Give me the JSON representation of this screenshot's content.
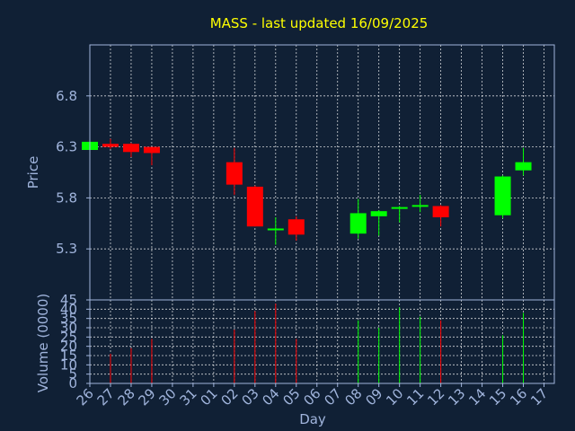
{
  "chart_data": [
    {
      "type": "candlestick",
      "title": "MASS - last updated 16/09/2025",
      "ylabel": "Price",
      "ylim": [
        4.8,
        7.3
      ],
      "yticks": [
        "5.3",
        "5.8",
        "6.3",
        "6.8"
      ],
      "grid": true,
      "colors": {
        "up": "#00ff00",
        "down": "#ff0000",
        "title": "#ffff00",
        "axis_text": "#a0b4dc",
        "grid": "#ffffff",
        "background": "#102035"
      },
      "days": [
        "26",
        "27",
        "28",
        "29",
        "30",
        "31",
        "01",
        "02",
        "03",
        "04",
        "05",
        "06",
        "07",
        "08",
        "09",
        "10",
        "11",
        "12",
        "13",
        "14",
        "15",
        "16",
        "17"
      ],
      "candles": [
        {
          "day": "26",
          "open": 6.27,
          "high": 6.37,
          "low": 6.27,
          "close": 6.35
        },
        {
          "day": "27",
          "open": 6.33,
          "high": 6.38,
          "low": 6.28,
          "close": 6.3
        },
        {
          "day": "28",
          "open": 6.33,
          "high": 6.34,
          "low": 6.2,
          "close": 6.25
        },
        {
          "day": "29",
          "open": 6.3,
          "high": 6.3,
          "low": 6.12,
          "close": 6.24
        },
        {
          "day": "02",
          "open": 6.15,
          "high": 6.29,
          "low": 5.83,
          "close": 5.93
        },
        {
          "day": "03",
          "open": 5.91,
          "high": 5.92,
          "low": 5.52,
          "close": 5.52
        },
        {
          "day": "04",
          "open": 5.5,
          "high": 5.61,
          "low": 5.34,
          "close": 5.5
        },
        {
          "day": "05",
          "open": 5.59,
          "high": 5.62,
          "low": 5.38,
          "close": 5.44
        },
        {
          "day": "08",
          "open": 5.45,
          "high": 5.79,
          "low": 5.4,
          "close": 5.65
        },
        {
          "day": "09",
          "open": 5.62,
          "high": 5.68,
          "low": 5.43,
          "close": 5.67
        },
        {
          "day": "10",
          "open": 5.7,
          "high": 5.72,
          "low": 5.56,
          "close": 5.71
        },
        {
          "day": "11",
          "open": 5.72,
          "high": 5.83,
          "low": 5.66,
          "close": 5.73
        },
        {
          "day": "12",
          "open": 5.72,
          "high": 5.73,
          "low": 5.52,
          "close": 5.61
        },
        {
          "day": "15",
          "open": 5.63,
          "high": 6.02,
          "low": 5.6,
          "close": 6.01
        },
        {
          "day": "16",
          "open": 6.07,
          "high": 6.29,
          "low": 6.02,
          "close": 6.15
        }
      ]
    },
    {
      "type": "bar",
      "ylabel": "Volume (0000)",
      "xlabel": "Day",
      "ylim": [
        0,
        45
      ],
      "yticks": [
        "0",
        "5",
        "10",
        "15",
        "20",
        "25",
        "30",
        "35",
        "40",
        "45"
      ],
      "grid": true,
      "bars": [
        {
          "day": "27",
          "value": 16,
          "direction": "down"
        },
        {
          "day": "28",
          "value": 19,
          "direction": "down"
        },
        {
          "day": "29",
          "value": 24,
          "direction": "down"
        },
        {
          "day": "02",
          "value": 29,
          "direction": "down"
        },
        {
          "day": "03",
          "value": 39,
          "direction": "down"
        },
        {
          "day": "04",
          "value": 43,
          "direction": "down"
        },
        {
          "day": "05",
          "value": 24,
          "direction": "down"
        },
        {
          "day": "08",
          "value": 34,
          "direction": "up"
        },
        {
          "day": "09",
          "value": 30,
          "direction": "up"
        },
        {
          "day": "10",
          "value": 41,
          "direction": "up"
        },
        {
          "day": "11",
          "value": 36,
          "direction": "up"
        },
        {
          "day": "12",
          "value": 34,
          "direction": "down"
        },
        {
          "day": "15",
          "value": 26,
          "direction": "up"
        },
        {
          "day": "16",
          "value": 38,
          "direction": "up"
        }
      ]
    }
  ]
}
